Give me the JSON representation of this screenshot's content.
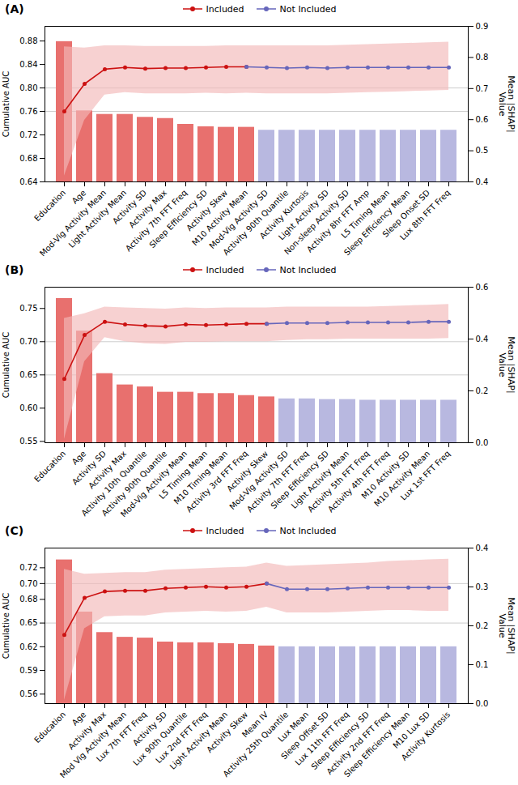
{
  "chart_data": [
    {
      "type": "bar",
      "title": "(A)",
      "ylabel": "Cumulative AUC",
      "y2label": "Mean |SHAP|\nValue",
      "legend": "top",
      "grid": false,
      "ylim": [
        0.64,
        0.905
      ],
      "yticks": [
        0.64,
        0.68,
        0.72,
        0.76,
        {
          "value": 0.8,
          "label": "0.80"
        },
        0.84,
        0.88
      ],
      "y2lim": [
        0.4,
        0.9
      ],
      "y2ticks": [
        0.4,
        0.5,
        0.6,
        0.7,
        0.8,
        0.9
      ],
      "hlines": [
        0.76,
        0.8
      ],
      "categories": [
        "Education",
        "Age",
        "Mod-Vig Activity Mean",
        "Light Activity Mean",
        "Activity SD",
        "Activity Max",
        "Activity 7th FFT Freq",
        "Sleep Efficiency SD",
        "Activity Skew",
        "M10 Activity Mean",
        "Mod-Vig Activity SD",
        "Activity 90th Quantile",
        "Activity Kurtosis",
        "Light Activity SD",
        "Non-sleep Activity SD",
        "Activity 8hr FFT Amp",
        "L5 Timing Mean",
        "Sleep Efficiency Mean",
        "Sleep Onset SD",
        "Lux 8th FFT Freq"
      ],
      "series": [
        {
          "type": "bar",
          "colors": [
            "#e8706e",
            "#e8706e",
            "#e8706e",
            "#e8706e",
            "#e8706e",
            "#e8706e",
            "#e8706e",
            "#e8706e",
            "#e8706e",
            "#e8706e",
            "#b8b8e0",
            "#b8b8e0",
            "#b8b8e0",
            "#b8b8e0",
            "#b8b8e0",
            "#b8b8e0",
            "#b8b8e0",
            "#b8b8e0",
            "#b8b8e0",
            "#b8b8e0"
          ],
          "values": [
            0.879,
            0.761,
            0.755,
            0.755,
            0.75,
            0.748,
            0.738,
            0.734,
            0.733,
            0.733,
            0.728,
            0.728,
            0.728,
            0.728,
            0.728,
            0.728,
            0.728,
            0.728,
            0.728,
            0.728
          ]
        },
        {
          "type": "area",
          "color": "#f2b8b8",
          "upper": [
            0.87,
            0.868,
            0.872,
            0.872,
            0.871,
            0.871,
            0.871,
            0.871,
            0.872,
            0.872,
            0.872,
            0.872,
            0.872,
            0.872,
            0.873,
            0.874,
            0.875,
            0.876,
            0.877,
            0.878
          ],
          "lower": [
            0.65,
            0.745,
            0.788,
            0.792,
            0.79,
            0.79,
            0.79,
            0.791,
            0.79,
            0.791,
            0.79,
            0.79,
            0.79,
            0.79,
            0.791,
            0.792,
            0.793,
            0.794,
            0.795,
            0.796
          ]
        },
        {
          "type": "line",
          "name": "Included",
          "color": "#cc1111",
          "marker": "circle",
          "values": [
            0.76,
            0.807,
            0.832,
            0.835,
            0.833,
            0.834,
            0.834,
            0.835,
            0.836,
            0.836,
            null,
            null,
            null,
            null,
            null,
            null,
            null,
            null,
            null,
            null
          ]
        },
        {
          "type": "line",
          "name": "Not Included",
          "color": "#6666bb",
          "marker": "circle",
          "values": [
            null,
            null,
            null,
            null,
            null,
            null,
            null,
            null,
            null,
            0.836,
            0.835,
            0.834,
            0.835,
            0.834,
            0.835,
            0.835,
            0.835,
            0.835,
            0.835,
            0.835
          ]
        }
      ]
    },
    {
      "type": "bar",
      "title": "(B)",
      "ylabel": "Cumulative AUC",
      "y2label": "Mean |SHAP|\nValue",
      "legend": "top",
      "grid": false,
      "ylim": [
        0.548,
        0.782
      ],
      "yticks": [
        0.55,
        {
          "value": 0.6,
          "label": "0.60"
        },
        0.65,
        {
          "value": 0.7,
          "label": "0.70"
        },
        0.75
      ],
      "y2lim": [
        0,
        0.6
      ],
      "y2ticks": [
        {
          "value": 0,
          "label": "0.0"
        },
        0.2,
        0.4,
        0.6
      ],
      "hlines": [
        0.65,
        0.7
      ],
      "categories": [
        "Education",
        "Age",
        "Activity SD",
        "Activity Max",
        "Activity 10th Quantile",
        "Activity 90th Quantile",
        "Mod-Vig Activity Mean",
        "L5 Timing Mean",
        "M10 Timing Mean",
        "Activity 3rd FFT Freq",
        "Activity Skew",
        "Mod-Vig Activity SD",
        "Activity 7th FFT Freq",
        "Sleep Efficiency SD",
        "Light Activity Mean",
        "Activity 5th FFT Freq",
        "Activity 4th FFT Freq",
        "M10 Activity SD",
        "M10 Activity Mean",
        "Lux 1st FFT Freq"
      ],
      "series": [
        {
          "type": "bar",
          "colors": [
            "#e8706e",
            "#e8706e",
            "#e8706e",
            "#e8706e",
            "#e8706e",
            "#e8706e",
            "#e8706e",
            "#e8706e",
            "#e8706e",
            "#e8706e",
            "#e8706e",
            "#b8b8e0",
            "#b8b8e0",
            "#b8b8e0",
            "#b8b8e0",
            "#b8b8e0",
            "#b8b8e0",
            "#b8b8e0",
            "#b8b8e0",
            "#b8b8e0"
          ],
          "values": [
            0.765,
            0.716,
            0.652,
            0.635,
            0.632,
            0.624,
            0.624,
            0.622,
            0.622,
            0.619,
            0.617,
            0.614,
            0.614,
            0.613,
            0.613,
            0.612,
            0.612,
            0.612,
            0.612,
            0.612
          ]
        },
        {
          "type": "area",
          "color": "#f2b8b8",
          "upper": [
            0.735,
            0.742,
            0.752,
            0.751,
            0.75,
            0.749,
            0.751,
            0.75,
            0.751,
            0.751,
            0.751,
            0.752,
            0.752,
            0.752,
            0.752,
            0.752,
            0.753,
            0.754,
            0.755,
            0.756
          ],
          "lower": [
            0.553,
            0.67,
            0.706,
            0.7,
            0.697,
            0.696,
            0.699,
            0.699,
            0.7,
            0.7,
            0.7,
            0.702,
            0.703,
            0.703,
            0.704,
            0.704,
            0.704,
            0.704,
            0.704,
            0.705
          ]
        },
        {
          "type": "line",
          "name": "Included",
          "color": "#cc1111",
          "marker": "circle",
          "values": [
            0.644,
            0.71,
            0.73,
            0.726,
            0.724,
            0.723,
            0.726,
            0.725,
            0.726,
            0.727,
            0.727,
            null,
            null,
            null,
            null,
            null,
            null,
            null,
            null,
            null
          ]
        },
        {
          "type": "line",
          "name": "Not Included",
          "color": "#6666bb",
          "marker": "circle",
          "values": [
            null,
            null,
            null,
            null,
            null,
            null,
            null,
            null,
            null,
            null,
            0.727,
            0.728,
            0.728,
            0.728,
            0.729,
            0.729,
            0.729,
            0.729,
            0.73,
            0.73
          ]
        }
      ]
    },
    {
      "type": "bar",
      "title": "(C)",
      "ylabel": "Cumulative AUC",
      "y2label": "Mean |SHAP|\nValue",
      "legend": "top",
      "grid": false,
      "ylim": [
        0.548,
        0.745
      ],
      "yticks": [
        0.56,
        0.59,
        0.62,
        0.65,
        0.68,
        {
          "value": 0.7,
          "label": "0.70"
        },
        0.72
      ],
      "y2lim": [
        0,
        0.4
      ],
      "y2ticks": [
        {
          "value": 0,
          "label": "0.0"
        },
        0.1,
        0.2,
        0.3,
        0.4
      ],
      "hlines": [
        0.65,
        0.7
      ],
      "categories": [
        "Education",
        "Age",
        "Activity Max",
        "Mod Vig Activity Mean",
        "Lux 7th FFT Freq",
        "Activity SD",
        "Lux 90th Quantile",
        "Lux 2nd FFT Freq",
        "Light Activity Mean",
        "Activity Skew",
        "Mean IV",
        "Activity 25th Quantile",
        "Lux Mean",
        "Sleep Offset SD",
        "Lux 11th FFT Freq",
        "Sleep Efficiency SD",
        "Activity 2nd FFT Freq",
        "Sleep Efficiency Mean",
        "M10 Lux SD",
        "Activity Kurtosis"
      ],
      "series": [
        {
          "type": "bar",
          "colors": [
            "#e8706e",
            "#e8706e",
            "#e8706e",
            "#e8706e",
            "#e8706e",
            "#e8706e",
            "#e8706e",
            "#e8706e",
            "#e8706e",
            "#e8706e",
            "#e8706e",
            "#b8b8e0",
            "#b8b8e0",
            "#b8b8e0",
            "#b8b8e0",
            "#b8b8e0",
            "#b8b8e0",
            "#b8b8e0",
            "#b8b8e0",
            "#b8b8e0"
          ],
          "values": [
            0.73,
            0.664,
            0.638,
            0.632,
            0.631,
            0.626,
            0.625,
            0.625,
            0.624,
            0.623,
            0.621,
            0.62,
            0.62,
            0.62,
            0.62,
            0.62,
            0.62,
            0.62,
            0.62,
            0.62
          ]
        },
        {
          "type": "area",
          "color": "#f2b8b8",
          "upper": [
            0.718,
            0.712,
            0.713,
            0.714,
            0.714,
            0.717,
            0.718,
            0.719,
            0.72,
            0.721,
            0.726,
            0.722,
            0.723,
            0.724,
            0.725,
            0.726,
            0.728,
            0.729,
            0.73,
            0.731
          ],
          "lower": [
            0.552,
            0.643,
            0.658,
            0.659,
            0.659,
            0.663,
            0.664,
            0.665,
            0.664,
            0.665,
            0.67,
            0.663,
            0.663,
            0.663,
            0.664,
            0.665,
            0.666,
            0.666,
            0.665,
            0.665
          ]
        },
        {
          "type": "line",
          "name": "Included",
          "color": "#cc1111",
          "marker": "circle",
          "values": [
            0.635,
            0.682,
            0.69,
            0.691,
            0.691,
            0.694,
            0.695,
            0.696,
            0.695,
            0.696,
            0.7,
            null,
            null,
            null,
            null,
            null,
            null,
            null,
            null,
            null
          ]
        },
        {
          "type": "line",
          "name": "Not Included",
          "color": "#6666bb",
          "marker": "circle",
          "values": [
            null,
            null,
            null,
            null,
            null,
            null,
            null,
            null,
            null,
            null,
            0.7,
            0.693,
            0.693,
            0.693,
            0.694,
            0.695,
            0.695,
            0.695,
            0.695,
            0.695
          ]
        }
      ]
    }
  ]
}
